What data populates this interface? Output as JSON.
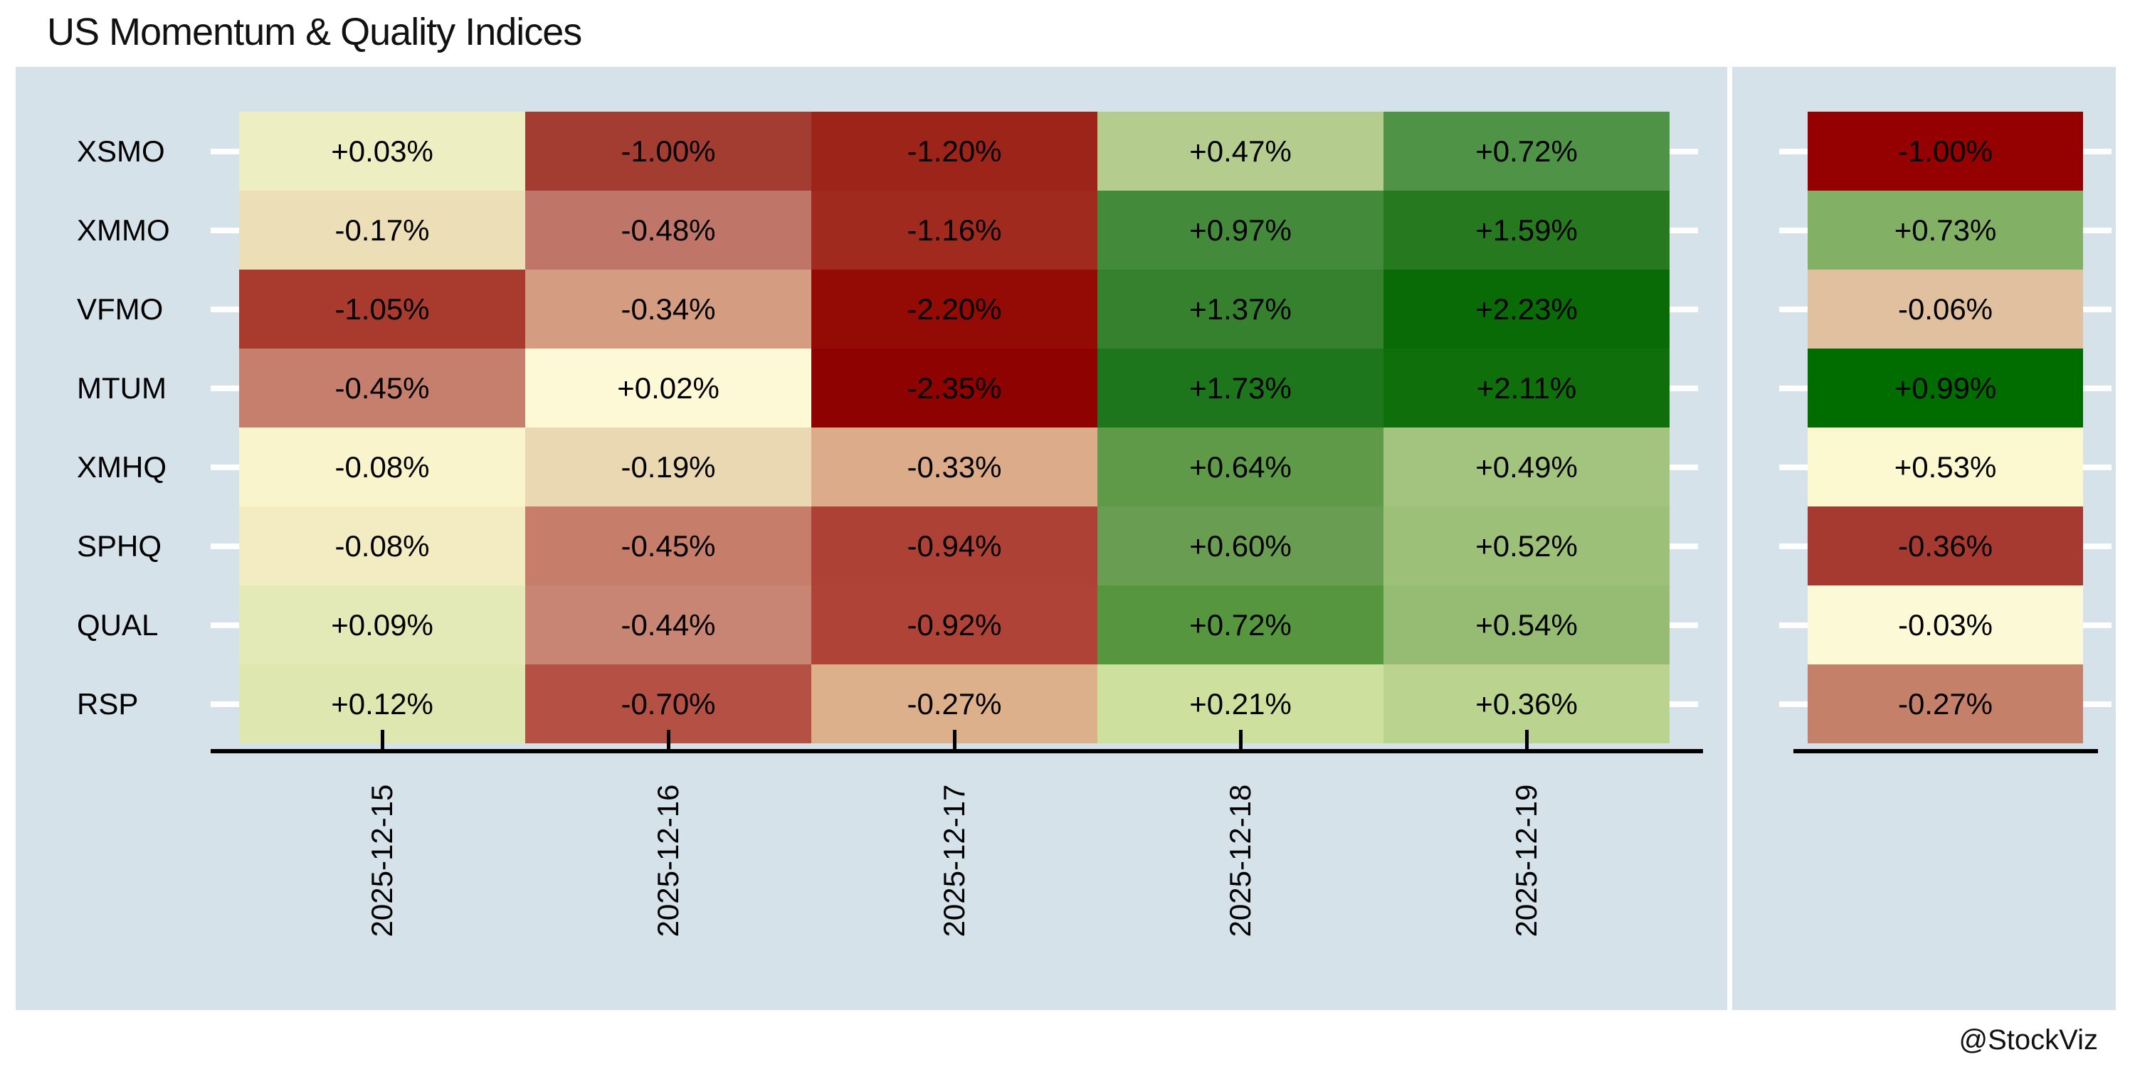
{
  "title": "US Momentum & Quality Indices",
  "credit": "@StockViz",
  "colors": {
    "page_bg": "#ffffff",
    "panel_bg": "#d5e2e9",
    "axis": "#000000",
    "tick_dash": "#ffffff",
    "text": "#000000"
  },
  "chart_data": {
    "type": "heatmap",
    "title": "US Momentum & Quality Indices",
    "value_unit": "% daily change",
    "rows": [
      "XSMO",
      "XMMO",
      "VFMO",
      "MTUM",
      "XMHQ",
      "SPHQ",
      "QUAL",
      "RSP"
    ],
    "columns": [
      "2025-12-15",
      "2025-12-16",
      "2025-12-17",
      "2025-12-18",
      "2025-12-19"
    ],
    "values": [
      [
        0.03,
        -1.0,
        -1.2,
        0.47,
        0.72
      ],
      [
        -0.17,
        -0.48,
        -1.16,
        0.97,
        1.59
      ],
      [
        -1.05,
        -0.34,
        -2.2,
        1.37,
        2.23
      ],
      [
        -0.45,
        0.02,
        -2.35,
        1.73,
        2.11
      ],
      [
        -0.08,
        -0.19,
        -0.33,
        0.64,
        0.49
      ],
      [
        -0.08,
        -0.45,
        -0.94,
        0.6,
        0.52
      ],
      [
        0.09,
        -0.44,
        -0.92,
        0.72,
        0.54
      ],
      [
        0.12,
        -0.7,
        -0.27,
        0.21,
        0.36
      ]
    ],
    "cell_labels": [
      [
        "+0.03%",
        "-1.00%",
        "-1.20%",
        "+0.47%",
        "+0.72%"
      ],
      [
        "-0.17%",
        "-0.48%",
        "-1.16%",
        "+0.97%",
        "+1.59%"
      ],
      [
        "-1.05%",
        "-0.34%",
        "-2.20%",
        "+1.37%",
        "+2.23%"
      ],
      [
        "-0.45%",
        "+0.02%",
        "-2.35%",
        "+1.73%",
        "+2.11%"
      ],
      [
        "-0.08%",
        "-0.19%",
        "-0.33%",
        "+0.64%",
        "+0.49%"
      ],
      [
        "-0.08%",
        "-0.45%",
        "-0.94%",
        "+0.60%",
        "+0.52%"
      ],
      [
        "+0.09%",
        "-0.44%",
        "-0.92%",
        "+0.72%",
        "+0.54%"
      ],
      [
        "+0.12%",
        "-0.70%",
        "-0.27%",
        "+0.21%",
        "+0.36%"
      ]
    ],
    "cell_colors": [
      [
        "#edefc3",
        "#a33d31",
        "#9c2418",
        "#b4cd8e",
        "#4f9347"
      ],
      [
        "#ecdfb8",
        "#bf7668",
        "#a12a1e",
        "#448a3b",
        "#27791f"
      ],
      [
        "#a93a2e",
        "#d49c80",
        "#930b04",
        "#35812e",
        "#086b06"
      ],
      [
        "#c67f6d",
        "#fdf9d6",
        "#8e0301",
        "#1d751c",
        "#0e6f0b"
      ],
      [
        "#faf4cd",
        "#ead8b2",
        "#dcab89",
        "#5f9a49",
        "#a3c47f"
      ],
      [
        "#f3ecc3",
        "#c67e6b",
        "#ad4136",
        "#699e52",
        "#9cc078"
      ],
      [
        "#e3eab8",
        "#c98573",
        "#af4338",
        "#55963f",
        "#95bc72"
      ],
      [
        "#dee7b0",
        "#b55045",
        "#ddb08c",
        "#cde09e",
        "#bad38f"
      ]
    ],
    "summary_column": {
      "labels": [
        "-1.00%",
        "+0.73%",
        "-0.06%",
        "+0.99%",
        "+0.53%",
        "-0.36%",
        "-0.03%",
        "-0.27%"
      ],
      "values": [
        -1.0,
        0.73,
        -0.06,
        0.99,
        0.53,
        -0.36,
        -0.03,
        -0.27
      ],
      "colors": [
        "#940100",
        "#82b166",
        "#e0c09e",
        "#016d01",
        "#fcf9d1",
        "#a73a30",
        "#fcfad6",
        "#c48069"
      ]
    },
    "layout_hints": {
      "x_tick_label_rotation": -90,
      "grid": false,
      "legend": "none",
      "colormap": "dark red (negative) to light yellow (flat) to dark green (positive)"
    }
  }
}
